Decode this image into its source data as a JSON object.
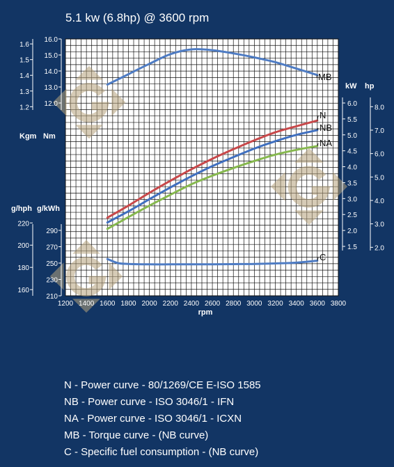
{
  "title": "5.1 kw (6.8hp) @ 3600 rpm",
  "colors": {
    "background": "#123564",
    "grid_bg": "#ffffff",
    "grid_line": "#111111",
    "N": "#c8484a",
    "NB": "#3f6fbf",
    "NA": "#86b84e",
    "MB": "#4e7cc4",
    "C": "#4e7cc4",
    "text": "#ffffff",
    "watermark": "#b5a27c"
  },
  "watermark_icon": "g-diamond-logo-icon",
  "chart_data": {
    "type": "line",
    "title": "5.1 kw (6.8hp) @ 3600 rpm",
    "xlabel": "rpm",
    "x_ticks": [
      "1200",
      "1400",
      "1600",
      "1800",
      "2000",
      "2200",
      "2400",
      "2600",
      "2800",
      "3000",
      "3200",
      "3400",
      "3600",
      "3800"
    ],
    "xlim": [
      1200,
      3800
    ],
    "grid": true,
    "left_axes": {
      "torque": {
        "labels": [
          "Kgm",
          "Nm"
        ],
        "kgm_ticks": [
          "1.6",
          "1.5",
          "1.4",
          "1.3",
          "1.2"
        ],
        "nm_ticks": [
          "16.0",
          "15.0",
          "14.0",
          "13.0",
          "12.0"
        ],
        "nm_range": [
          12,
          16
        ]
      },
      "consumption": {
        "labels": [
          "g/hph",
          "g/kWh"
        ],
        "ghph_ticks": [
          "220",
          "200",
          "180",
          "160"
        ],
        "gkwh_ticks": [
          "290",
          "270",
          "250",
          "230",
          "210"
        ],
        "gkwh_range": [
          210,
          290
        ]
      }
    },
    "right_axes": {
      "power": {
        "labels": [
          "kW",
          "hp"
        ],
        "kw_ticks": [
          "6.0",
          "5.5",
          "5.0",
          "4.5",
          "4.0",
          "3.5",
          "3.0",
          "2.5",
          "2.0",
          "1.5"
        ],
        "hp_ticks": [
          "8.0",
          "7.0",
          "6.0",
          "5.0",
          "4.0",
          "3.0",
          "2.0"
        ],
        "kw_range": [
          1.5,
          6.0
        ]
      }
    },
    "series": [
      {
        "name": "N",
        "unit": "kW",
        "x": [
          1600,
          1800,
          2000,
          2200,
          2400,
          2600,
          2800,
          3000,
          3200,
          3400,
          3600
        ],
        "values": [
          2.4,
          2.78,
          3.18,
          3.56,
          3.92,
          4.25,
          4.55,
          4.83,
          5.08,
          5.27,
          5.45
        ]
      },
      {
        "name": "NB",
        "unit": "kW",
        "x": [
          1600,
          1800,
          2000,
          2200,
          2400,
          2600,
          2800,
          3000,
          3200,
          3400,
          3600
        ],
        "values": [
          2.25,
          2.6,
          2.98,
          3.35,
          3.7,
          4.02,
          4.3,
          4.57,
          4.8,
          5.0,
          5.15
        ]
      },
      {
        "name": "NA",
        "unit": "kW",
        "x": [
          1600,
          1800,
          2000,
          2200,
          2400,
          2600,
          2800,
          3000,
          3200,
          3400,
          3600
        ],
        "values": [
          2.05,
          2.42,
          2.78,
          3.12,
          3.45,
          3.72,
          3.96,
          4.18,
          4.38,
          4.53,
          4.65
        ]
      },
      {
        "name": "MB",
        "unit": "Nm",
        "x": [
          1600,
          1800,
          2000,
          2200,
          2400,
          2600,
          2800,
          3000,
          3200,
          3400,
          3600
        ],
        "values": [
          13.15,
          13.8,
          14.45,
          15.05,
          15.35,
          15.3,
          15.1,
          14.85,
          14.55,
          14.15,
          13.75
        ]
      },
      {
        "name": "C",
        "unit": "g/kWh",
        "x": [
          1600,
          1700,
          1800,
          2000,
          2200,
          2400,
          2600,
          2800,
          3000,
          3200,
          3400,
          3600
        ],
        "values": [
          255,
          250,
          249,
          248.5,
          248.5,
          248.5,
          248.5,
          248.7,
          249,
          249.6,
          250.5,
          253
        ]
      }
    ]
  },
  "legend": [
    "N - Power curve - 80/1269/CE E-ISO 1585",
    "NB - Power curve - ISO 3046/1 - IFN",
    "NA - Power curve - ISO 3046/1 - ICXN",
    "MB - Torque curve - (NB curve)",
    "C - Specific fuel consumption - (NB curve)"
  ]
}
